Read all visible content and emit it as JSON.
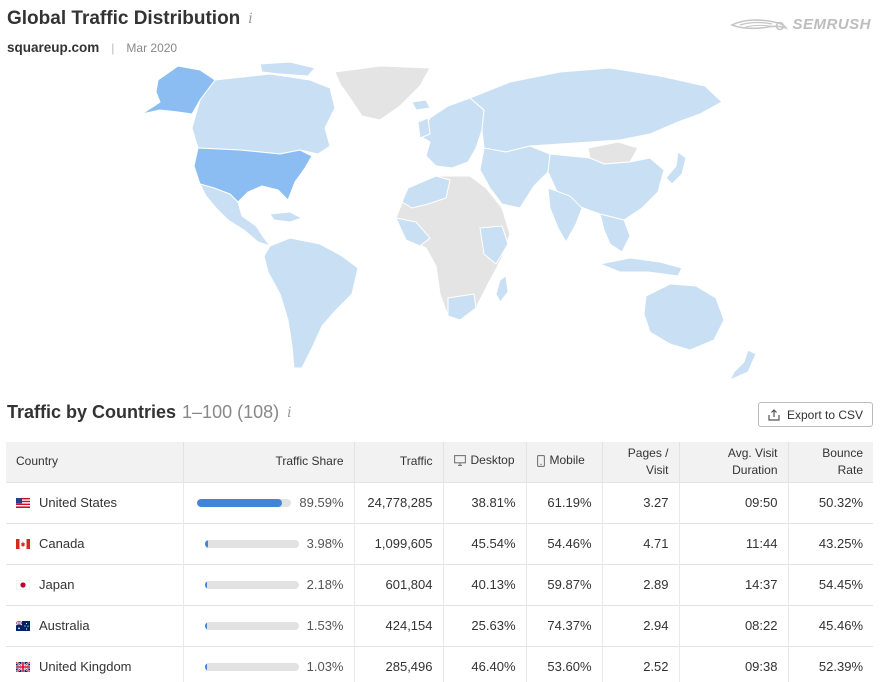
{
  "header": {
    "title": "Global Traffic Distribution",
    "info": "i",
    "domain": "squareup.com",
    "separator": "|",
    "date": "Mar 2020"
  },
  "brand": {
    "name": "SEMRUSH",
    "icon": "semrush-fire-icon"
  },
  "colors": {
    "map_high": "#8bbdf3",
    "map_low": "#c8dff4",
    "map_none": "#e4e4e4",
    "bar_fill": "#4285d6",
    "bar_track": "#e2e2e2"
  },
  "section": {
    "title": "Traffic by Countries",
    "range": "1–100 (108)",
    "info": "i",
    "export_label": "Export to CSV",
    "export_icon": "export-icon"
  },
  "table": {
    "columns": {
      "country": "Country",
      "traffic_share": "Traffic Share",
      "traffic": "Traffic",
      "desktop": "Desktop",
      "mobile": "Mobile",
      "pages_visit_1": "Pages /",
      "pages_visit_2": "Visit",
      "duration_1": "Avg. Visit",
      "duration_2": "Duration",
      "bounce_1": "Bounce",
      "bounce_2": "Rate"
    },
    "rows": [
      {
        "country": "United States",
        "flag": "us-flag-icon",
        "share": "89.59%",
        "share_frac": 0.8959,
        "traffic": "24,778,285",
        "desktop": "38.81%",
        "mobile": "61.19%",
        "pages": "3.27",
        "duration": "09:50",
        "bounce": "50.32%"
      },
      {
        "country": "Canada",
        "flag": "canada-flag-icon",
        "share": "3.98%",
        "share_frac": 0.0398,
        "traffic": "1,099,605",
        "desktop": "45.54%",
        "mobile": "54.46%",
        "pages": "4.71",
        "duration": "11:44",
        "bounce": "43.25%"
      },
      {
        "country": "Japan",
        "flag": "japan-flag-icon",
        "share": "2.18%",
        "share_frac": 0.0218,
        "traffic": "601,804",
        "desktop": "40.13%",
        "mobile": "59.87%",
        "pages": "2.89",
        "duration": "14:37",
        "bounce": "54.45%"
      },
      {
        "country": "Australia",
        "flag": "australia-flag-icon",
        "share": "1.53%",
        "share_frac": 0.0153,
        "traffic": "424,154",
        "desktop": "25.63%",
        "mobile": "74.37%",
        "pages": "2.94",
        "duration": "08:22",
        "bounce": "45.46%"
      },
      {
        "country": "United Kingdom",
        "flag": "uk-flag-icon",
        "share": "1.03%",
        "share_frac": 0.0103,
        "traffic": "285,496",
        "desktop": "46.40%",
        "mobile": "53.60%",
        "pages": "2.52",
        "duration": "09:38",
        "bounce": "52.39%"
      }
    ]
  }
}
